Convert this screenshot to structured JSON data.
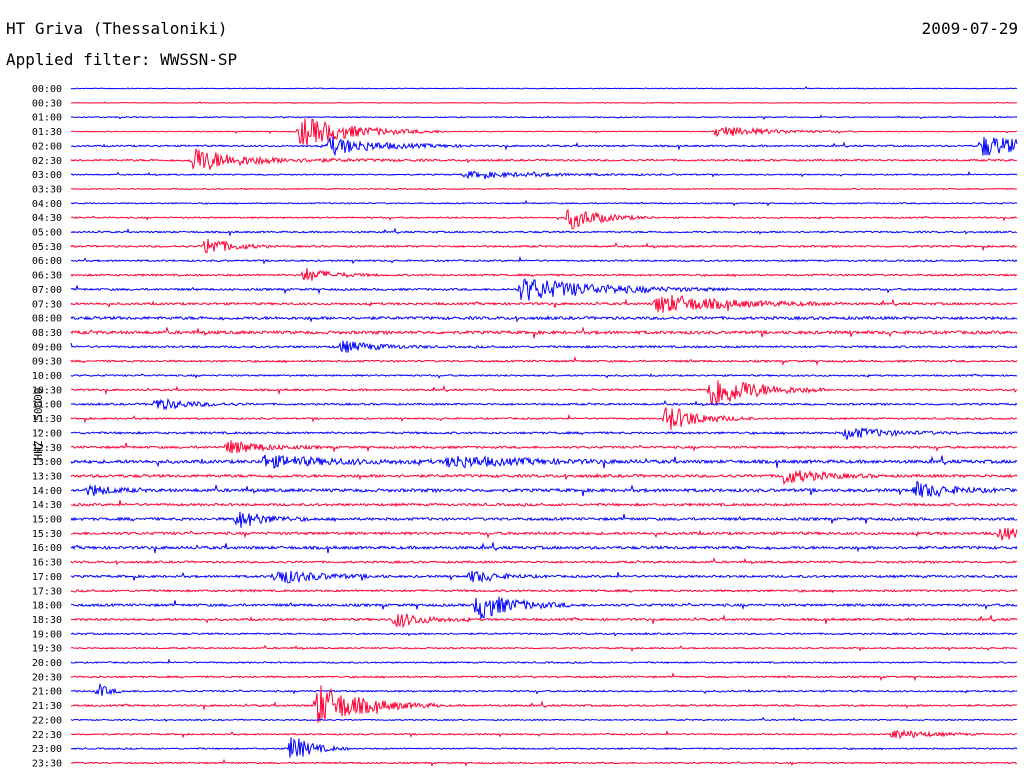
{
  "header": {
    "station": "HT Griva (Thessaloniki)",
    "date": "2009-07-29",
    "filter_label": "Applied filter: WWSSN-SP"
  },
  "colors": {
    "even_trace": "#0000ff",
    "odd_trace": "#ff0033",
    "text": "#000000",
    "background": "#ffffff"
  },
  "chart_data": {
    "type": "line",
    "ylabel": "HHZ - 50000",
    "row_labels": [
      "00:00",
      "00:30",
      "01:00",
      "01:30",
      "02:00",
      "02:30",
      "03:00",
      "03:30",
      "04:00",
      "04:30",
      "05:00",
      "05:30",
      "06:00",
      "06:30",
      "07:00",
      "07:30",
      "08:00",
      "08:30",
      "09:00",
      "09:30",
      "10:00",
      "10:30",
      "11:00",
      "11:30",
      "12:00",
      "12:30",
      "13:00",
      "13:30",
      "14:00",
      "14:30",
      "15:00",
      "15:30",
      "16:00",
      "16:30",
      "17:00",
      "17:30",
      "18:00",
      "18:30",
      "19:00",
      "19:30",
      "20:00",
      "20:30",
      "21:00",
      "21:30",
      "22:00",
      "22:30",
      "23:00",
      "23:30"
    ],
    "row_noise": [
      0.4,
      0.3,
      0.5,
      0.4,
      0.8,
      0.9,
      0.6,
      0.5,
      0.6,
      0.7,
      0.8,
      0.9,
      0.8,
      0.9,
      1.0,
      1.1,
      1.4,
      1.5,
      1.0,
      0.9,
      0.8,
      0.9,
      0.9,
      0.8,
      1.0,
      1.1,
      1.6,
      1.4,
      1.5,
      1.2,
      1.3,
      1.3,
      1.4,
      1.0,
      1.1,
      1.0,
      1.2,
      1.1,
      0.8,
      0.7,
      0.7,
      0.8,
      0.8,
      0.9,
      0.6,
      0.7,
      0.7,
      0.7
    ],
    "events": [
      {
        "row": 3,
        "minute": 7.3,
        "amp": 16,
        "dur": 1.5
      },
      {
        "row": 3,
        "minute": 20.5,
        "amp": 6,
        "dur": 1.5
      },
      {
        "row": 4,
        "minute": 8.2,
        "amp": 9,
        "dur": 1.5
      },
      {
        "row": 4,
        "minute": 28.9,
        "amp": 11,
        "dur": 1.8
      },
      {
        "row": 5,
        "minute": 3.9,
        "amp": 5,
        "dur": 2.5
      },
      {
        "row": 5,
        "minute": 3.9,
        "amp": 9,
        "dur": 0.8
      },
      {
        "row": 6,
        "minute": 12.5,
        "amp": 3,
        "dur": 2.5
      },
      {
        "row": 9,
        "minute": 15.8,
        "amp": 12,
        "dur": 0.9
      },
      {
        "row": 11,
        "minute": 4.3,
        "amp": 10,
        "dur": 0.7
      },
      {
        "row": 13,
        "minute": 7.4,
        "amp": 7,
        "dur": 0.8
      },
      {
        "row": 14,
        "minute": 14.3,
        "amp": 12,
        "dur": 2.2
      },
      {
        "row": 15,
        "minute": 18.6,
        "amp": 10,
        "dur": 2.0
      },
      {
        "row": 18,
        "minute": 8.6,
        "amp": 6,
        "dur": 1.0
      },
      {
        "row": 21,
        "minute": 20.3,
        "amp": 20,
        "dur": 1.2
      },
      {
        "row": 22,
        "minute": 2.7,
        "amp": 6,
        "dur": 1.0
      },
      {
        "row": 23,
        "minute": 18.9,
        "amp": 14,
        "dur": 0.9
      },
      {
        "row": 24,
        "minute": 24.6,
        "amp": 6,
        "dur": 1.2
      },
      {
        "row": 25,
        "minute": 5.0,
        "amp": 7,
        "dur": 1.0
      },
      {
        "row": 26,
        "minute": 6.1,
        "amp": 6,
        "dur": 2.0
      },
      {
        "row": 26,
        "minute": 12.0,
        "amp": 6,
        "dur": 2.0
      },
      {
        "row": 27,
        "minute": 22.6,
        "amp": 8,
        "dur": 1.0
      },
      {
        "row": 28,
        "minute": 0.6,
        "amp": 6,
        "dur": 0.6
      },
      {
        "row": 28,
        "minute": 26.8,
        "amp": 8,
        "dur": 1.0
      },
      {
        "row": 30,
        "minute": 5.3,
        "amp": 9,
        "dur": 0.8
      },
      {
        "row": 31,
        "minute": 29.5,
        "amp": 7,
        "dur": 0.6
      },
      {
        "row": 34,
        "minute": 6.5,
        "amp": 8,
        "dur": 1.2
      },
      {
        "row": 34,
        "minute": 12.7,
        "amp": 6,
        "dur": 0.8
      },
      {
        "row": 36,
        "minute": 12.9,
        "amp": 15,
        "dur": 1.0
      },
      {
        "row": 37,
        "minute": 10.3,
        "amp": 8,
        "dur": 0.8
      },
      {
        "row": 42,
        "minute": 0.9,
        "amp": 7,
        "dur": 0.3
      },
      {
        "row": 43,
        "minute": 7.8,
        "amp": 22,
        "dur": 1.3
      },
      {
        "row": 45,
        "minute": 26.1,
        "amp": 5,
        "dur": 1.0
      },
      {
        "row": 46,
        "minute": 7.0,
        "amp": 14,
        "dur": 0.6
      }
    ]
  }
}
